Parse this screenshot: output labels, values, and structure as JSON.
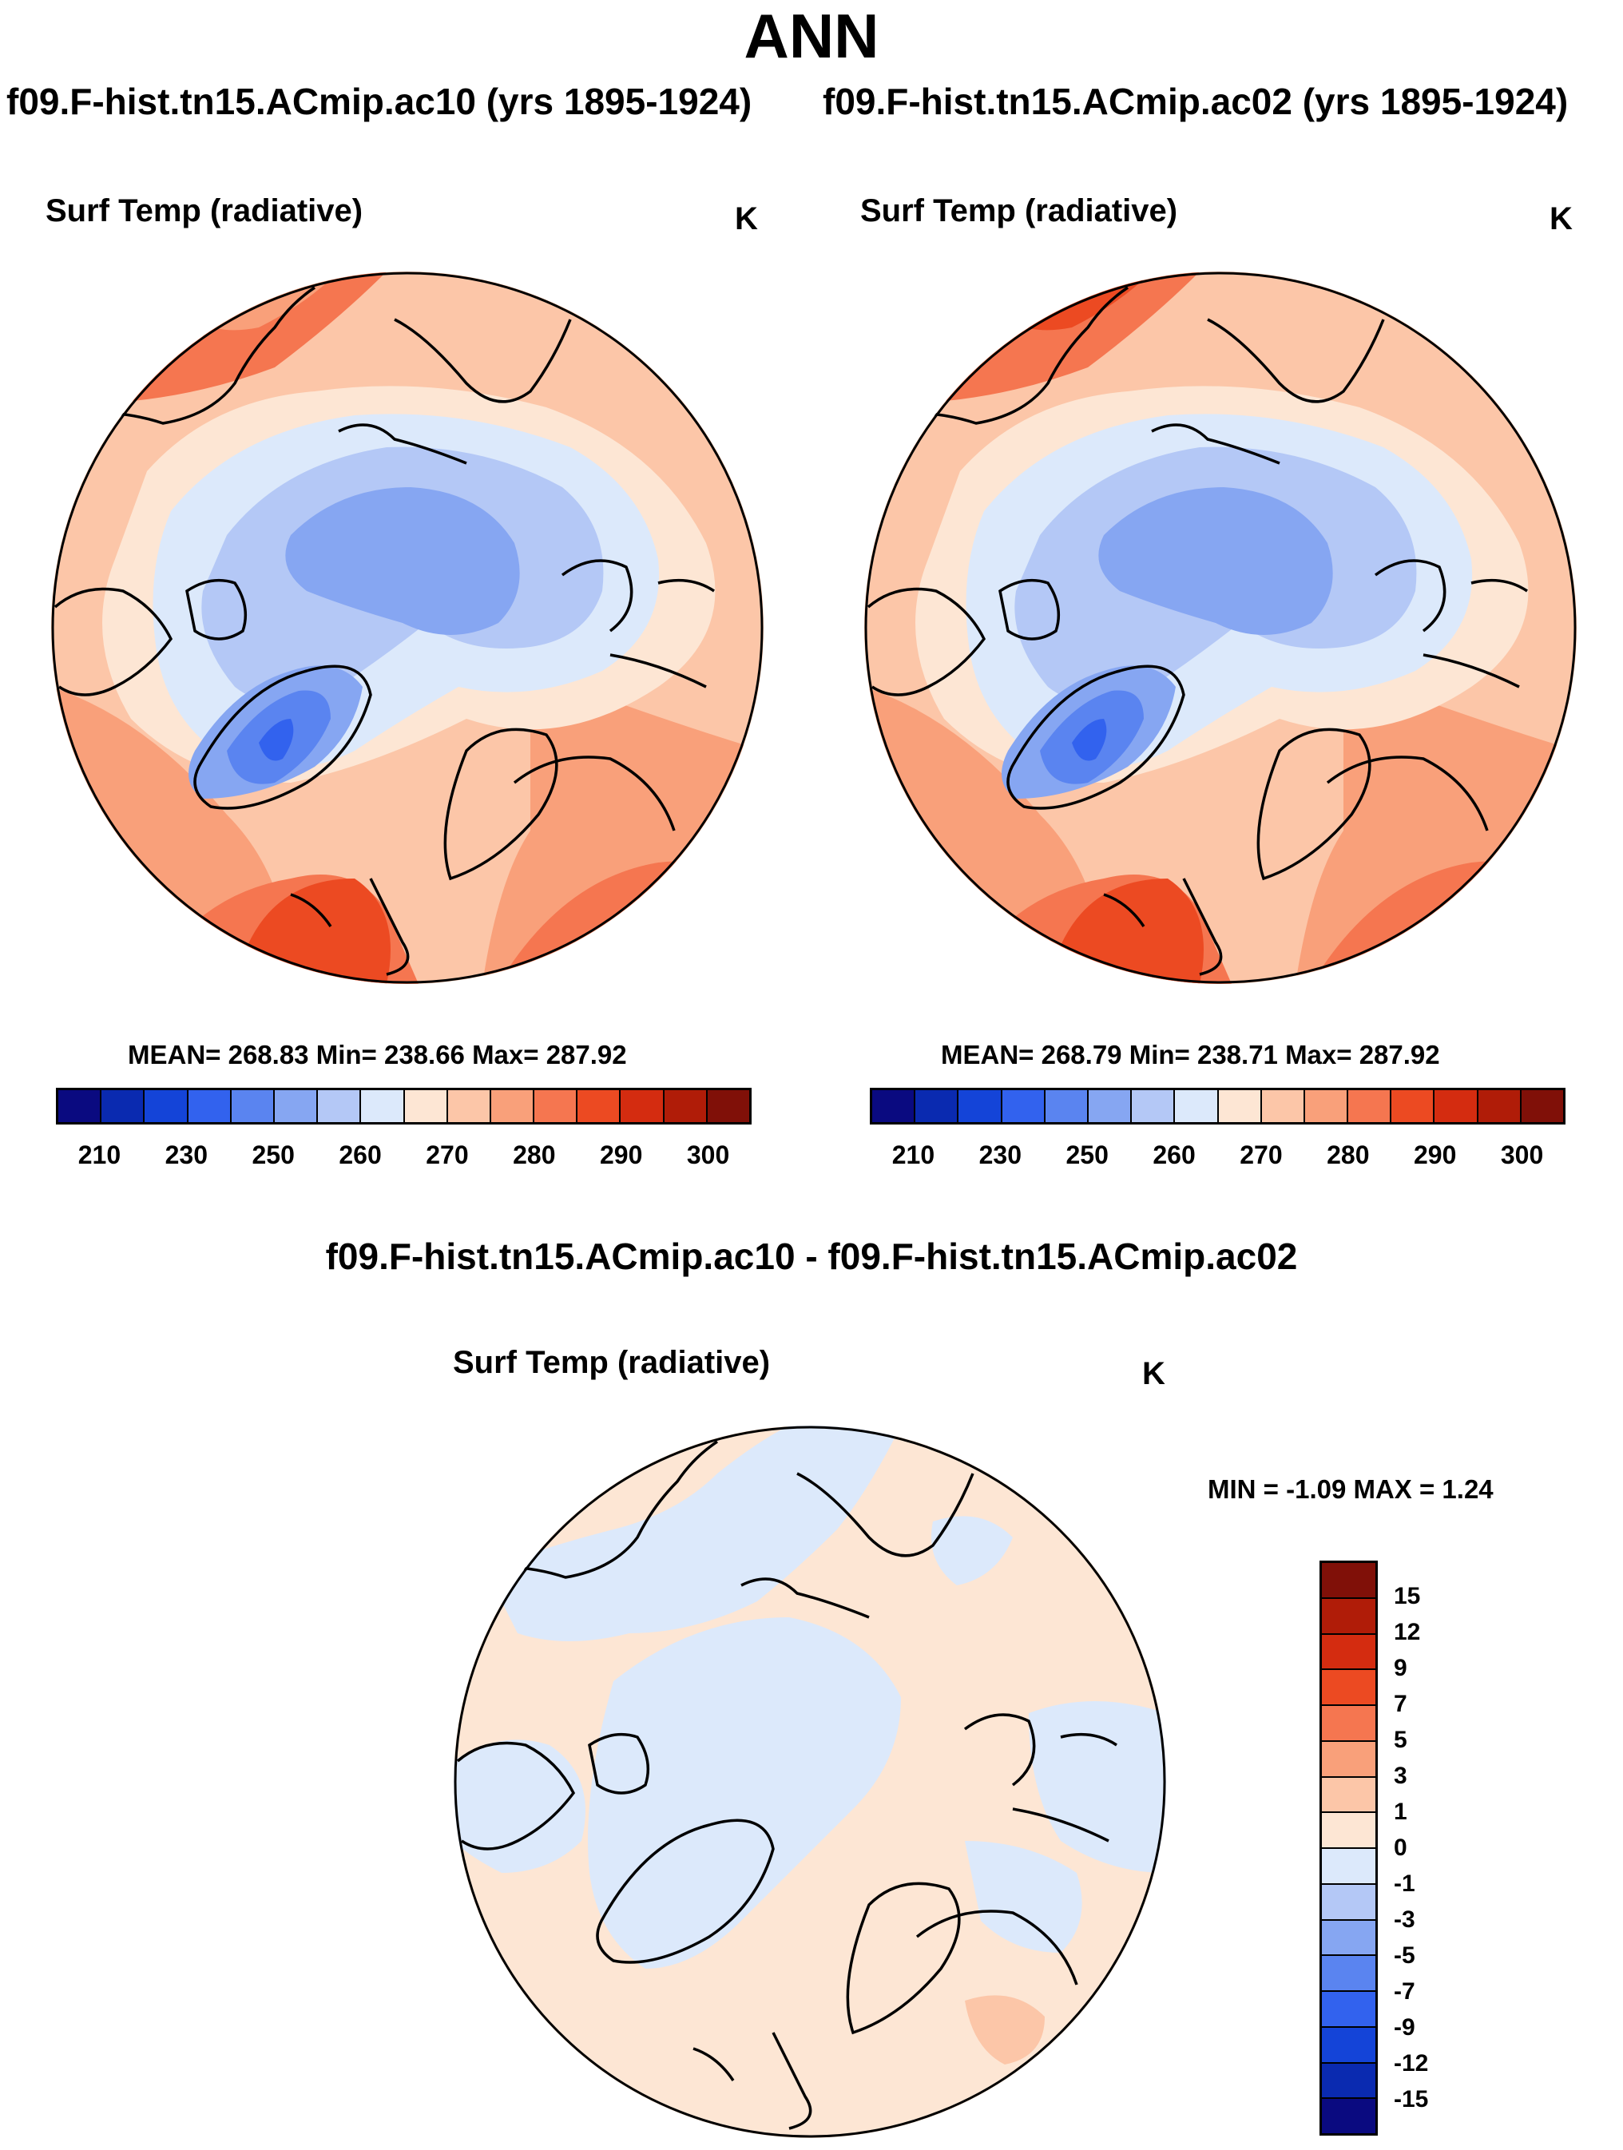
{
  "figure": {
    "title": "ANN",
    "case_a": "f09.F-hist.tn15.ACmip.ac10 (yrs 1895-1924)",
    "case_b": "f09.F-hist.tn15.ACmip.ac02 (yrs 1895-1924)",
    "diff_title": "f09.F-hist.tn15.ACmip.ac10 - f09.F-hist.tn15.ACmip.ac02"
  },
  "panels": [
    {
      "variable": "Surf Temp (radiative)",
      "units": "K",
      "stats": "MEAN= 268.83  Min= 238.66  Max= 287.92"
    },
    {
      "variable": "Surf Temp (radiative)",
      "units": "K",
      "stats": "MEAN= 268.79  Min= 238.71  Max= 287.92"
    },
    {
      "variable": "Surf Temp (radiative)",
      "units": "K",
      "stats": "MIN =  -1.09 MAX =   1.24"
    }
  ],
  "colorbar_abs": {
    "colors": [
      "#0a0a80",
      "#0a2ab0",
      "#1444d8",
      "#3262ee",
      "#5a84f0",
      "#86a6f2",
      "#b4c8f6",
      "#dce9fb",
      "#fde6d4",
      "#fcc6a8",
      "#f9a07a",
      "#f57650",
      "#ec4a22",
      "#d42c10",
      "#b01c08",
      "#801008"
    ],
    "labels": [
      "210",
      "230",
      "250",
      "260",
      "270",
      "280",
      "290",
      "300"
    ]
  },
  "colorbar_diff": {
    "colors": [
      "#801008",
      "#b01c08",
      "#d42c10",
      "#ec4a22",
      "#f57650",
      "#f9a07a",
      "#fcc6a8",
      "#fde6d4",
      "#dce9fb",
      "#b4c8f6",
      "#86a6f2",
      "#5a84f0",
      "#3262ee",
      "#1444d8",
      "#0a2ab0",
      "#0a0a80"
    ],
    "labels": [
      "15",
      "12",
      "9",
      "7",
      "5",
      "3",
      "1",
      "0",
      "-1",
      "-3",
      "-5",
      "-7",
      "-9",
      "-12",
      "-15"
    ]
  }
}
